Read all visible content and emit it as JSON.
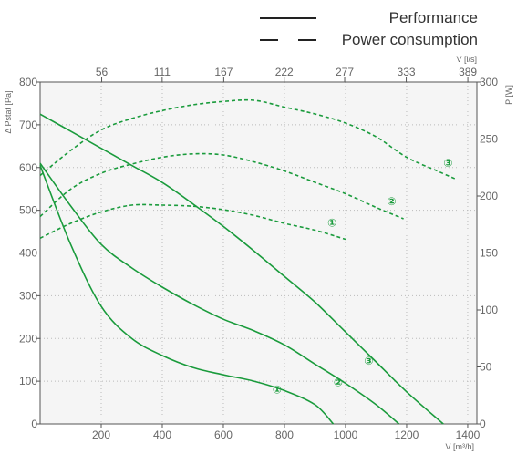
{
  "chart_data": {
    "type": "line",
    "legend": {
      "placement": "top-right",
      "performance_label": "Performance",
      "power_label": "Power consumption"
    },
    "colors": {
      "series": "#1a9b3c",
      "plot_bg": "#f5f5f5",
      "grid": "#bbbbbb",
      "axis": "#555555"
    },
    "x_axis": {
      "label": "V [m³/h]",
      "range": [
        0,
        1430
      ],
      "ticks": [
        "200",
        "400",
        "600",
        "800",
        "1000",
        "1200",
        "1400"
      ]
    },
    "x2_axis": {
      "label": "V [l/s]",
      "ticks": [
        "56",
        "111",
        "167",
        "222",
        "277",
        "333",
        "389"
      ]
    },
    "y_axis": {
      "label": "Δ Pstat [Pa]",
      "range": [
        0,
        800
      ],
      "ticks": [
        "0",
        "100",
        "200",
        "300",
        "400",
        "500",
        "600",
        "700",
        "800"
      ]
    },
    "y2_axis": {
      "label": "P [W]",
      "range": [
        0,
        300
      ],
      "ticks": [
        "0",
        "50",
        "100",
        "150",
        "200",
        "250",
        "300"
      ]
    },
    "series": [
      {
        "marker": "①",
        "kind": "performance",
        "axis": "left",
        "points": [
          [
            0,
            605
          ],
          [
            100,
            420
          ],
          [
            200,
            275
          ],
          [
            300,
            200
          ],
          [
            400,
            160
          ],
          [
            500,
            132
          ],
          [
            600,
            115
          ],
          [
            700,
            100
          ],
          [
            800,
            78
          ],
          [
            900,
            45
          ],
          [
            960,
            0
          ]
        ]
      },
      {
        "marker": "②",
        "kind": "performance",
        "axis": "left",
        "points": [
          [
            0,
            610
          ],
          [
            100,
            510
          ],
          [
            200,
            420
          ],
          [
            300,
            365
          ],
          [
            400,
            320
          ],
          [
            500,
            280
          ],
          [
            600,
            245
          ],
          [
            700,
            218
          ],
          [
            800,
            185
          ],
          [
            900,
            140
          ],
          [
            1000,
            95
          ],
          [
            1100,
            45
          ],
          [
            1175,
            0
          ]
        ]
      },
      {
        "marker": "③",
        "kind": "performance",
        "axis": "left",
        "points": [
          [
            0,
            725
          ],
          [
            100,
            685
          ],
          [
            200,
            645
          ],
          [
            300,
            605
          ],
          [
            400,
            565
          ],
          [
            500,
            515
          ],
          [
            600,
            462
          ],
          [
            700,
            405
          ],
          [
            800,
            345
          ],
          [
            900,
            285
          ],
          [
            1000,
            215
          ],
          [
            1100,
            145
          ],
          [
            1200,
            75
          ],
          [
            1320,
            0
          ]
        ]
      },
      {
        "marker": "①",
        "kind": "power",
        "axis": "right",
        "points": [
          [
            0,
            163
          ],
          [
            100,
            176
          ],
          [
            200,
            186
          ],
          [
            300,
            192
          ],
          [
            400,
            192
          ],
          [
            500,
            191
          ],
          [
            600,
            188
          ],
          [
            700,
            183
          ],
          [
            800,
            176
          ],
          [
            900,
            170
          ],
          [
            1000,
            162
          ]
        ]
      },
      {
        "marker": "②",
        "kind": "power",
        "axis": "right",
        "points": [
          [
            0,
            182
          ],
          [
            100,
            206
          ],
          [
            200,
            220
          ],
          [
            300,
            228
          ],
          [
            400,
            234
          ],
          [
            500,
            237
          ],
          [
            600,
            236
          ],
          [
            700,
            230
          ],
          [
            800,
            222
          ],
          [
            900,
            212
          ],
          [
            1000,
            202
          ],
          [
            1100,
            190
          ],
          [
            1190,
            180
          ]
        ]
      },
      {
        "marker": "③",
        "kind": "power",
        "axis": "right",
        "points": [
          [
            0,
            218
          ],
          [
            100,
            240
          ],
          [
            200,
            258
          ],
          [
            300,
            268
          ],
          [
            400,
            275
          ],
          [
            500,
            280
          ],
          [
            600,
            283
          ],
          [
            700,
            284
          ],
          [
            800,
            278
          ],
          [
            900,
            272
          ],
          [
            1000,
            264
          ],
          [
            1100,
            252
          ],
          [
            1200,
            234
          ],
          [
            1300,
            222
          ],
          [
            1360,
            215
          ]
        ]
      }
    ]
  }
}
